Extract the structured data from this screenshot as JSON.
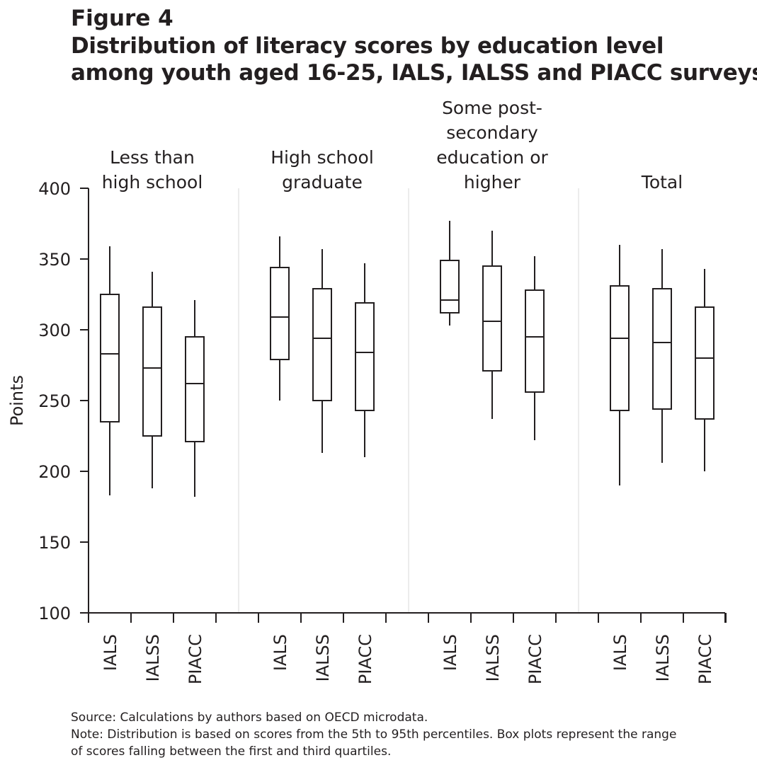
{
  "figure": {
    "label": "Figure 4",
    "title_lines": [
      "Distribution of literacy scores by education level",
      "among youth aged 16-25, IALS, IALSS and PIACC surveys"
    ]
  },
  "chart_data": {
    "type": "boxplot",
    "ylabel": "Points",
    "ylim": [
      100,
      400
    ],
    "yticks": [
      100,
      150,
      200,
      250,
      300,
      350,
      400
    ],
    "grid": false,
    "groups": [
      {
        "label_lines": [
          "Less than",
          "high school"
        ],
        "boxes": [
          {
            "survey": "IALS",
            "p5": 183,
            "q1": 235,
            "median": 283,
            "q3": 325,
            "p95": 359
          },
          {
            "survey": "IALSS",
            "p5": 188,
            "q1": 225,
            "median": 273,
            "q3": 316,
            "p95": 341
          },
          {
            "survey": "PIACC",
            "p5": 182,
            "q1": 221,
            "median": 262,
            "q3": 295,
            "p95": 321
          }
        ]
      },
      {
        "label_lines": [
          "High school",
          "graduate"
        ],
        "boxes": [
          {
            "survey": "IALS",
            "p5": 250,
            "q1": 279,
            "median": 309,
            "q3": 344,
            "p95": 366
          },
          {
            "survey": "IALSS",
            "p5": 213,
            "q1": 250,
            "median": 294,
            "q3": 329,
            "p95": 357
          },
          {
            "survey": "PIACC",
            "p5": 210,
            "q1": 243,
            "median": 284,
            "q3": 319,
            "p95": 347
          }
        ]
      },
      {
        "label_lines": [
          "Some post-",
          "secondary",
          "education or",
          "higher"
        ],
        "boxes": [
          {
            "survey": "IALS",
            "p5": 303,
            "q1": 312,
            "median": 321,
            "q3": 349,
            "p95": 377
          },
          {
            "survey": "IALSS",
            "p5": 237,
            "q1": 271,
            "median": 306,
            "q3": 345,
            "p95": 370
          },
          {
            "survey": "PIACC",
            "p5": 222,
            "q1": 256,
            "median": 295,
            "q3": 328,
            "p95": 352
          }
        ]
      },
      {
        "label_lines": [
          "Total"
        ],
        "boxes": [
          {
            "survey": "IALS",
            "p5": 190,
            "q1": 243,
            "median": 294,
            "q3": 331,
            "p95": 360
          },
          {
            "survey": "IALSS",
            "p5": 206,
            "q1": 244,
            "median": 291,
            "q3": 329,
            "p95": 357
          },
          {
            "survey": "PIACC",
            "p5": 200,
            "q1": 237,
            "median": 280,
            "q3": 316,
            "p95": 343
          }
        ]
      }
    ]
  },
  "notes": {
    "source": "Source: Calculations by authors based on OECD microdata.",
    "note_lines": [
      "Note: Distribution is based on scores from the 5th to 95th percentiles. Box plots represent the range",
      "of scores falling between the first and third quartiles."
    ]
  }
}
